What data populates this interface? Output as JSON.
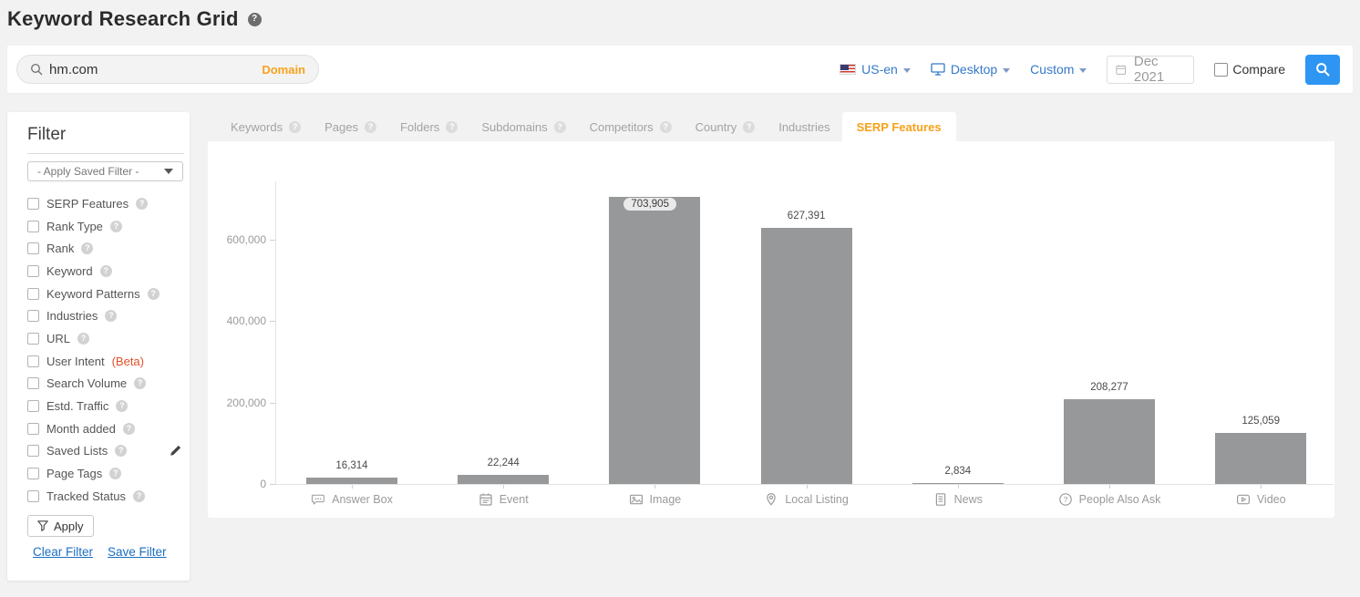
{
  "page": {
    "title": "Keyword Research Grid"
  },
  "search": {
    "query": "hm.com",
    "type_label": "Domain"
  },
  "controls": {
    "language": "US-en",
    "device": "Desktop",
    "period": "Custom",
    "date": "Dec 2021",
    "compare_label": "Compare"
  },
  "filter": {
    "title": "Filter",
    "saved_filter_placeholder": "- Apply Saved Filter -",
    "items": [
      {
        "label": "SERP Features",
        "help": true
      },
      {
        "label": "Rank Type",
        "help": true
      },
      {
        "label": "Rank",
        "help": true
      },
      {
        "label": "Keyword",
        "help": true
      },
      {
        "label": "Keyword Patterns",
        "help": true
      },
      {
        "label": "Industries",
        "help": true
      },
      {
        "label": "URL",
        "help": true
      },
      {
        "label": "User Intent",
        "help": false,
        "badge": "(Beta)"
      },
      {
        "label": "Search Volume",
        "help": true
      },
      {
        "label": "Estd. Traffic",
        "help": true
      },
      {
        "label": "Month added",
        "help": true
      },
      {
        "label": "Saved Lists",
        "help": true,
        "edit": true
      },
      {
        "label": "Page Tags",
        "help": true
      },
      {
        "label": "Tracked Status",
        "help": true
      }
    ],
    "apply_label": "Apply",
    "clear_label": "Clear Filter",
    "save_label": "Save Filter"
  },
  "tabs": [
    {
      "label": "Keywords",
      "help": true,
      "active": false
    },
    {
      "label": "Pages",
      "help": true,
      "active": false
    },
    {
      "label": "Folders",
      "help": true,
      "active": false
    },
    {
      "label": "Subdomains",
      "help": true,
      "active": false
    },
    {
      "label": "Competitors",
      "help": true,
      "active": false
    },
    {
      "label": "Country",
      "help": true,
      "active": false
    },
    {
      "label": "Industries",
      "help": false,
      "active": false
    },
    {
      "label": "SERP Features",
      "help": false,
      "active": true
    }
  ],
  "chart_data": {
    "type": "bar",
    "title": "",
    "xlabel": "",
    "ylabel": "",
    "categories": [
      {
        "label": "Answer Box",
        "icon": "answer-box"
      },
      {
        "label": "Event",
        "icon": "event"
      },
      {
        "label": "Image",
        "icon": "image"
      },
      {
        "label": "Local Listing",
        "icon": "local-listing"
      },
      {
        "label": "News",
        "icon": "news"
      },
      {
        "label": "People Also Ask",
        "icon": "people-also-ask"
      },
      {
        "label": "Video",
        "icon": "video"
      }
    ],
    "values": [
      16314,
      22244,
      703905,
      627391,
      2834,
      208277,
      125059
    ],
    "value_labels": [
      "16,314",
      "22,244",
      "703,905",
      "627,391",
      "2,834",
      "208,277",
      "125,059"
    ],
    "ylim": [
      0,
      740000
    ],
    "yticks": {
      "values": [
        0,
        200000,
        400000,
        600000
      ],
      "labels": [
        "0",
        "200,000",
        "400,000",
        "600,000"
      ]
    },
    "grid": false,
    "legend": false,
    "bar_color": "#97989a"
  }
}
